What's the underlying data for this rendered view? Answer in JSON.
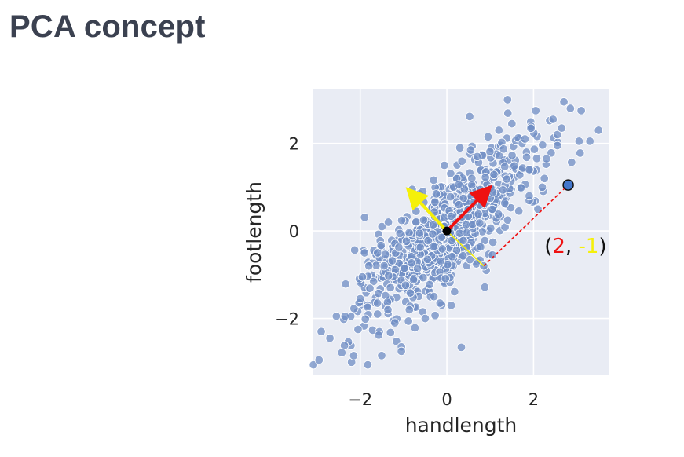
{
  "page": {
    "title": "PCA concept"
  },
  "chart_data": {
    "type": "scatter",
    "xlabel": "handlength",
    "ylabel": "footlength",
    "xlim": [
      -3.1,
      3.75
    ],
    "ylim": [
      -3.3,
      3.25
    ],
    "xticks": [
      -2,
      0,
      2
    ],
    "yticks": [
      -2,
      0,
      2
    ],
    "xtick_labels": [
      "−2",
      "0",
      "2"
    ],
    "ytick_labels": [
      "−2",
      "0",
      "2"
    ],
    "grid": true,
    "colors": {
      "background": "#e9ecf4",
      "grid": "#ffffff",
      "point": "#6f8ec4",
      "point_edge": "#ffffff",
      "pc1_arrow": "#ee1111",
      "pc2_arrow": "#f5f00a",
      "projection_red": "#ee1111",
      "projection_yellow": "#f5f00a",
      "highlight_point": "#4477cc",
      "mean_point": "#000000"
    },
    "points_from_chart": [
      [
        -2.95,
        -2.95
      ],
      [
        -2.9,
        -2.3
      ],
      [
        -2.7,
        -2.45
      ],
      [
        -2.55,
        -1.95
      ],
      [
        -2.35,
        -1.95
      ],
      [
        -2.2,
        -3.0
      ],
      [
        -2.15,
        -2.85
      ],
      [
        -2.05,
        -2.25
      ],
      [
        -2.0,
        -1.55
      ],
      [
        -1.95,
        -1.05
      ],
      [
        -1.8,
        -0.8
      ],
      [
        -1.6,
        -0.5
      ],
      [
        -1.5,
        0.1
      ],
      [
        -1.35,
        0.2
      ],
      [
        -1.05,
        -2.65
      ],
      [
        -1.05,
        -2.75
      ],
      [
        -0.8,
        0.95
      ],
      [
        -0.5,
        -2.0
      ],
      [
        0.3,
        1.9
      ],
      [
        0.55,
        1.85
      ],
      [
        0.7,
        1.7
      ],
      [
        0.95,
        2.15
      ],
      [
        1.2,
        2.3
      ],
      [
        1.4,
        3.0
      ],
      [
        1.5,
        2.45
      ],
      [
        1.8,
        2.1
      ],
      [
        2.05,
        2.75
      ],
      [
        1.9,
        1.4
      ],
      [
        2.2,
        1.0
      ],
      [
        2.25,
        1.2
      ],
      [
        2.45,
        2.55
      ],
      [
        2.55,
        2.2
      ],
      [
        2.65,
        2.35
      ],
      [
        2.7,
        2.95
      ],
      [
        2.85,
        2.8
      ],
      [
        3.05,
        2.05
      ],
      [
        3.3,
        2.05
      ],
      [
        3.5,
        2.3
      ],
      [
        2.3,
        1.65
      ],
      [
        2.1,
        0.5
      ],
      [
        1.05,
        -0.55
      ],
      [
        0.85,
        -0.8
      ],
      [
        0.1,
        -1.7
      ],
      [
        -0.3,
        -1.5
      ],
      [
        1.9,
        0.8
      ],
      [
        -1.2,
        -2.1
      ],
      [
        -1.6,
        -1.9
      ],
      [
        2.55,
        1.95
      ],
      [
        3.1,
        2.75
      ],
      [
        -1.9,
        -0.5
      ]
    ],
    "cloud": {
      "n_points": 780,
      "seed": 7,
      "pc1_direction": [
        0.707,
        0.707
      ],
      "sd_major": 1.33,
      "sd_minor": 0.45
    },
    "highlight_point": [
      2.8,
      1.05
    ],
    "mean_point": [
      0.0,
      0.0
    ],
    "pc1_arrow_end": [
      1.0,
      1.0
    ],
    "pc2_arrow_end": [
      -0.9,
      0.95
    ],
    "projection_red_line": [
      [
        0.85,
        -0.8
      ],
      [
        2.8,
        1.05
      ]
    ],
    "projection_yellow_line": [
      [
        0.0,
        0.0
      ],
      [
        0.85,
        -0.8
      ]
    ],
    "annotation": {
      "open": "(",
      "pc1_score": "2",
      "sep": ", ",
      "pc2_score": "-1",
      "close": ")",
      "position": [
        2.25,
        -0.5
      ]
    }
  }
}
